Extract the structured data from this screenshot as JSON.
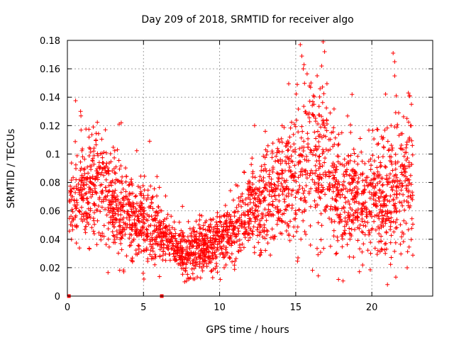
{
  "chart_data": {
    "type": "scatter",
    "title": "Day 209 of 2018, SRMTID for receiver algo",
    "xlabel": "GPS time / hours",
    "ylabel": "SRMTID / TECUs",
    "xlim": [
      0,
      24
    ],
    "ylim": [
      0,
      0.18
    ],
    "x_ticks": [
      0,
      5,
      10,
      15,
      20
    ],
    "x_tick_labels": [
      "0",
      "5",
      "10",
      "15",
      "20"
    ],
    "y_ticks": [
      0,
      0.02,
      0.04,
      0.06,
      0.08,
      0.1,
      0.12,
      0.14,
      0.16,
      0.18
    ],
    "y_tick_labels": [
      "0",
      "0.02",
      "0.04",
      "0.06",
      "0.08",
      "0.1",
      "0.12",
      "0.14",
      "0.16",
      "0.18"
    ],
    "grid": true,
    "marker": "plus",
    "color": "#ff0000",
    "zero_markers": [
      [
        0.1,
        0
      ],
      [
        6.2,
        0
      ]
    ],
    "trend": {
      "x": [
        0,
        1,
        2,
        3,
        4,
        5,
        6,
        7,
        8,
        9,
        10,
        11,
        12,
        13,
        14,
        15,
        16,
        17,
        18,
        19,
        20,
        21,
        22,
        22.7
      ],
      "y": [
        0.065,
        0.075,
        0.078,
        0.07,
        0.058,
        0.052,
        0.05,
        0.032,
        0.03,
        0.034,
        0.038,
        0.045,
        0.058,
        0.068,
        0.075,
        0.085,
        0.095,
        0.09,
        0.07,
        0.07,
        0.072,
        0.068,
        0.08,
        0.085
      ]
    },
    "spread": {
      "x": [
        0,
        2,
        4,
        6,
        7,
        10,
        12,
        14,
        15,
        17,
        18,
        20,
        22,
        22.7
      ],
      "y": [
        0.018,
        0.02,
        0.016,
        0.014,
        0.008,
        0.01,
        0.016,
        0.02,
        0.028,
        0.026,
        0.022,
        0.018,
        0.028,
        0.025
      ]
    },
    "n_points": 2600,
    "peaks": [
      {
        "x": 15.3,
        "y": 0.177
      },
      {
        "x": 16.8,
        "y": 0.179
      },
      {
        "x": 16.9,
        "y": 0.172
      },
      {
        "x": 15.4,
        "y": 0.169
      },
      {
        "x": 21.4,
        "y": 0.171
      },
      {
        "x": 21.5,
        "y": 0.165
      },
      {
        "x": 16.7,
        "y": 0.162
      },
      {
        "x": 15.5,
        "y": 0.16
      },
      {
        "x": 21.5,
        "y": 0.155
      },
      {
        "x": 15.1,
        "y": 0.149
      },
      {
        "x": 15.9,
        "y": 0.148
      },
      {
        "x": 16.6,
        "y": 0.146
      },
      {
        "x": 18.7,
        "y": 0.142
      },
      {
        "x": 22.4,
        "y": 0.143
      },
      {
        "x": 22.5,
        "y": 0.141
      },
      {
        "x": 21.6,
        "y": 0.141
      },
      {
        "x": 3.4,
        "y": 0.121
      },
      {
        "x": 12.3,
        "y": 0.12
      },
      {
        "x": 5.4,
        "y": 0.109
      },
      {
        "x": 1.7,
        "y": 0.119
      },
      {
        "x": 2.5,
        "y": 0.117
      },
      {
        "x": 13.0,
        "y": 0.116
      },
      {
        "x": 22.6,
        "y": 0.135
      },
      {
        "x": 16.2,
        "y": 0.135
      }
    ]
  }
}
